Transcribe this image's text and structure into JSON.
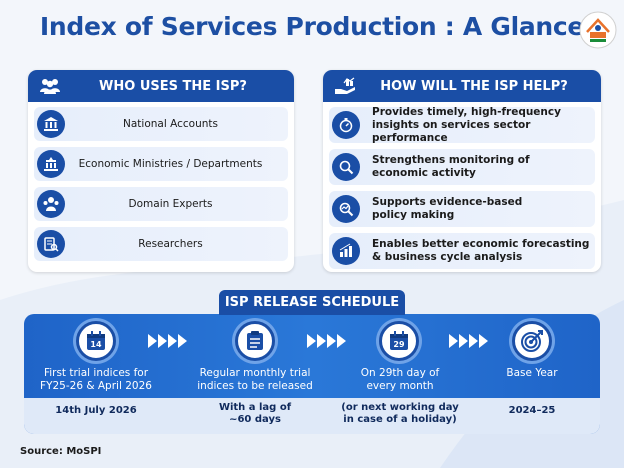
{
  "title": "Index of Services Production : A Glance",
  "who": {
    "heading": "WHO USES THE ISP?",
    "items": [
      {
        "label": "National Accounts",
        "icon": "bank-icon"
      },
      {
        "label": "Economic Ministries / Departments",
        "icon": "ministry-building-icon"
      },
      {
        "label": "Domain Experts",
        "icon": "people-group-icon"
      },
      {
        "label": "Researchers",
        "icon": "research-document-icon"
      }
    ]
  },
  "how": {
    "heading": "HOW WILL THE ISP HELP?",
    "items": [
      {
        "line1": "Provides timely, high-frequency",
        "line2": "insights on services sector performance",
        "icon": "stopwatch-icon"
      },
      {
        "line1": "Strengthens monitoring of",
        "line2": "economic activity",
        "icon": "magnifier-icon"
      },
      {
        "line1": "Supports evidence-based",
        "line2": "policy making",
        "icon": "analysis-icon"
      },
      {
        "line1": "Enables better economic forecasting",
        "line2": "& business cycle analysis",
        "icon": "bar-chart-icon"
      }
    ]
  },
  "schedule": {
    "heading": "ISP RELEASE SCHEDULE",
    "milestones": [
      {
        "icon_text": "14",
        "line1": "First trial indices for",
        "line2": "FY25-26 & April 2026",
        "bottom1": "14th July 2026",
        "bottom2": ""
      },
      {
        "icon_text": "",
        "line1": "Regular monthly trial",
        "line2": "indices to be released",
        "bottom1": "With a lag of",
        "bottom2": "~60 days"
      },
      {
        "icon_text": "29",
        "line1": "On 29th day of",
        "line2": "every month",
        "bottom1": "(or next working day",
        "bottom2": "in case of a holiday)"
      },
      {
        "icon_text": "",
        "line1": "Base Year",
        "line2": "",
        "bottom1": "2024–25",
        "bottom2": ""
      }
    ]
  },
  "source": "Source: MoSPI",
  "colors": {
    "primary": "#1a4ea6",
    "title": "#1d4fa3",
    "timeline": "#2a78d8"
  }
}
